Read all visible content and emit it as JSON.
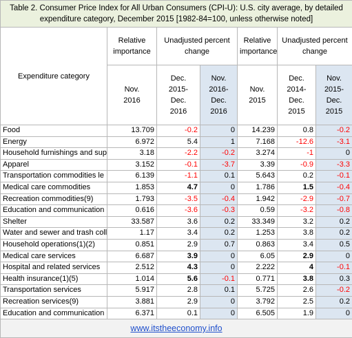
{
  "title": "Table 2. Consumer Price Index for All Urban Consumers (CPI-U): U.S. city average, by detailed expenditure category, December 2015 [1982-84=100, unless otherwise noted]",
  "header": {
    "category": "Expenditure category",
    "groups": [
      "Relative importance",
      "Unadjusted percent change",
      "Relative importance",
      "Unadjusted percent change"
    ],
    "columns": [
      "Nov.\n2016",
      "Dec.\n2015-\nDec.\n2016",
      "Nov.\n2016-\nDec.\n2016",
      "Nov.\n2015",
      "Dec.\n2014-\nDec.\n2015",
      "Nov.\n2015-\nDec.\n2015"
    ]
  },
  "table": {
    "rows": [
      [
        "Food",
        "13.709",
        "-0.2",
        "0",
        "14.239",
        "0.8",
        "-0.2"
      ],
      [
        "Energy",
        "6.972",
        "5.4",
        "1",
        "7.168",
        "-12.6",
        "-3.1"
      ],
      [
        "Household furnishings and sup",
        "3.18",
        "-2.2",
        "-0.2",
        "3.274",
        "-1",
        "0"
      ],
      [
        "Apparel",
        "3.152",
        "-0.1",
        "-3.7",
        "3.39",
        "-0.9",
        "-3.3"
      ],
      [
        "Transportation commodities le",
        "6.139",
        "-1.1",
        "0.1",
        "5.643",
        "0.2",
        "-0.1"
      ],
      [
        "Medical care commodities",
        "1.853",
        "4.7",
        "0",
        "1.786",
        "1.5",
        "-0.4"
      ],
      [
        "Recreation commodities(9)",
        "1.793",
        "-3.5",
        "-0.4",
        "1.942",
        "-2.9",
        "-0.7"
      ],
      [
        "Education and communication",
        "0.616",
        "-3.6",
        "-0.3",
        "0.59",
        "-3.2",
        "-0.8"
      ],
      [
        "Shelter",
        "33.587",
        "3.6",
        "0.2",
        "33.349",
        "3.2",
        "0.2"
      ],
      [
        "Water and sewer and trash coll",
        "1.17",
        "3.4",
        "0.2",
        "1.253",
        "3.8",
        "0.2"
      ],
      [
        "Household operations(1)(2)",
        "0.851",
        "2.9",
        "0.7",
        "0.863",
        "3.4",
        "0.5"
      ],
      [
        "Medical care services",
        "6.687",
        "3.9",
        "0",
        "6.05",
        "2.9",
        "0"
      ],
      [
        "Hospital and related services",
        "2.512",
        "4.3",
        "0",
        "2.222",
        "4",
        "-0.1"
      ],
      [
        "Health insurance(1)(5)",
        "1.014",
        "5.6",
        "-0.1",
        "0.771",
        "3.8",
        "0.3"
      ],
      [
        "Transportation services",
        "5.917",
        "2.8",
        "0.1",
        "5.725",
        "2.6",
        "-0.2"
      ],
      [
        "Recreation services(9)",
        "3.881",
        "2.9",
        "0",
        "3.792",
        "2.5",
        "0.2"
      ],
      [
        "Education and communication",
        "6.371",
        "0.1",
        "0",
        "6.505",
        "1.9",
        "0"
      ]
    ]
  },
  "footer": "www.itstheeconomy.info"
}
